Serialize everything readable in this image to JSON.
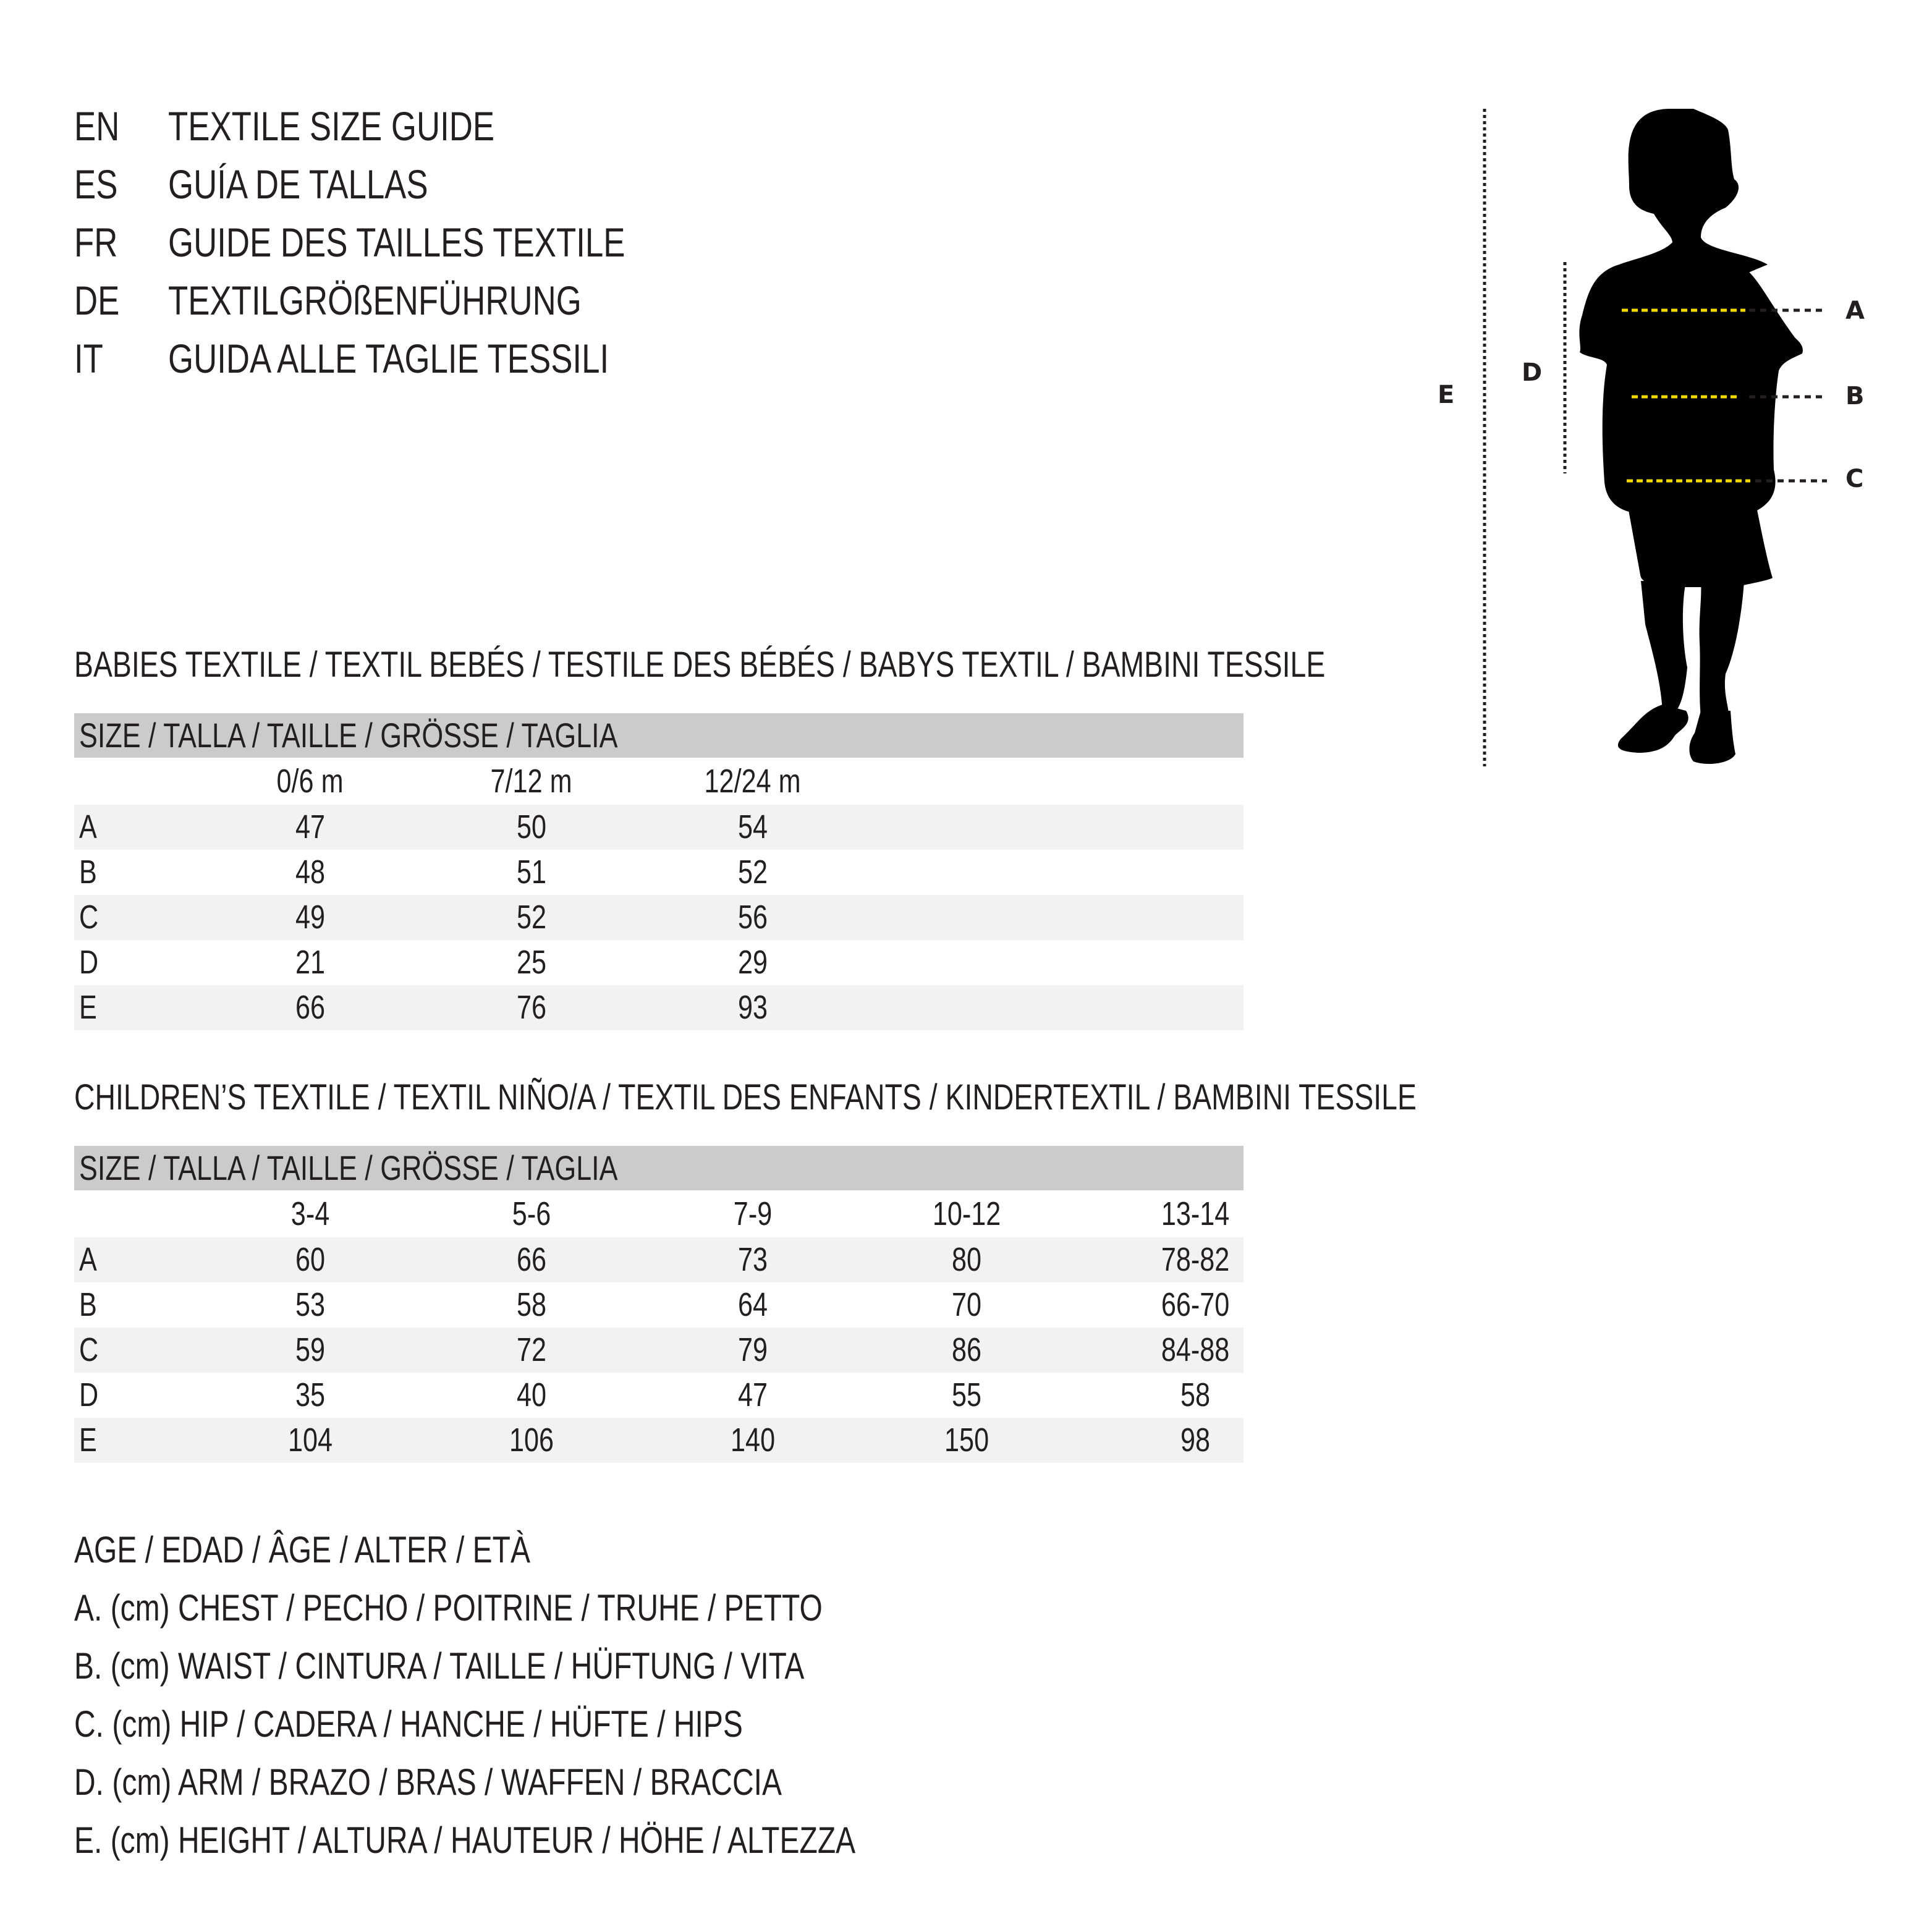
{
  "titles": [
    {
      "code": "EN",
      "text": "TEXTILE SIZE GUIDE"
    },
    {
      "code": "ES",
      "text": "GUÍA DE TALLAS"
    },
    {
      "code": "FR",
      "text": "GUIDE DES TAILLES TEXTILE"
    },
    {
      "code": "DE",
      "text": "TEXTILGRÖßENFÜHRUNG"
    },
    {
      "code": "IT",
      "text": "GUIDA ALLE TAGLIE TESSILI"
    }
  ],
  "babies": {
    "heading": "BABIES TEXTILE / TEXTIL BEBÉS / TESTILE DES BÉBÉS / BABYS TEXTIL / BAMBINI TESSILE",
    "size_label": "SIZE / TALLA / TAILLE / GRÖSSE / TAGLIA",
    "columns": [
      "0/6 m",
      "7/12 m",
      "12/24 m"
    ],
    "rows": [
      {
        "label": "A",
        "values": [
          "47",
          "50",
          "54"
        ]
      },
      {
        "label": "B",
        "values": [
          "48",
          "51",
          "52"
        ]
      },
      {
        "label": "C",
        "values": [
          "49",
          "52",
          "56"
        ]
      },
      {
        "label": "D",
        "values": [
          "21",
          "25",
          "29"
        ]
      },
      {
        "label": "E",
        "values": [
          "66",
          "76",
          "93"
        ]
      }
    ]
  },
  "children": {
    "heading": "CHILDREN’S TEXTILE / TEXTIL NIÑO/A / TEXTIL DES ENFANTS / KINDERTEXTIL / BAMBINI TESSILE",
    "size_label": "SIZE / TALLA / TAILLE / GRÖSSE / TAGLIA",
    "columns": [
      "3-4",
      "5-6",
      "7-9",
      "10-12",
      "13-14"
    ],
    "rows": [
      {
        "label": "A",
        "values": [
          "60",
          "66",
          "73",
          "80",
          "78-82"
        ]
      },
      {
        "label": "B",
        "values": [
          "53",
          "58",
          "64",
          "70",
          "66-70"
        ]
      },
      {
        "label": "C",
        "values": [
          "59",
          "72",
          "79",
          "86",
          "84-88"
        ]
      },
      {
        "label": "D",
        "values": [
          "35",
          "40",
          "47",
          "55",
          "58"
        ]
      },
      {
        "label": "E",
        "values": [
          "104",
          "106",
          "140",
          "150",
          "98"
        ]
      }
    ]
  },
  "legend": [
    "AGE / EDAD / ÂGE / ALTER / ETÀ",
    "A. (cm) CHEST / PECHO / POITRINE / TRUHE / PETTO",
    "B. (cm) WAIST / CINTURA / TAILLE / HÜFTUNG / VITA",
    "C. (cm) HIP / CADERA / HANCHE / HÜFTE / HIPS",
    "D. (cm) ARM / BRAZO / BRAS / WAFFEN / BRACCIA",
    "E. (cm) HEIGHT / ALTURA / HAUTEUR / HÖHE / ALTEZZA"
  ],
  "figure": {
    "labels": {
      "A": "A",
      "B": "B",
      "C": "C",
      "D": "D",
      "E": "E"
    },
    "colors": {
      "silhouette": "#000000",
      "measure_line": "#f5d800",
      "guide_line": "#231f20",
      "header_bar": "#cbcbcd",
      "row_shade": "#f2f2f2"
    }
  }
}
